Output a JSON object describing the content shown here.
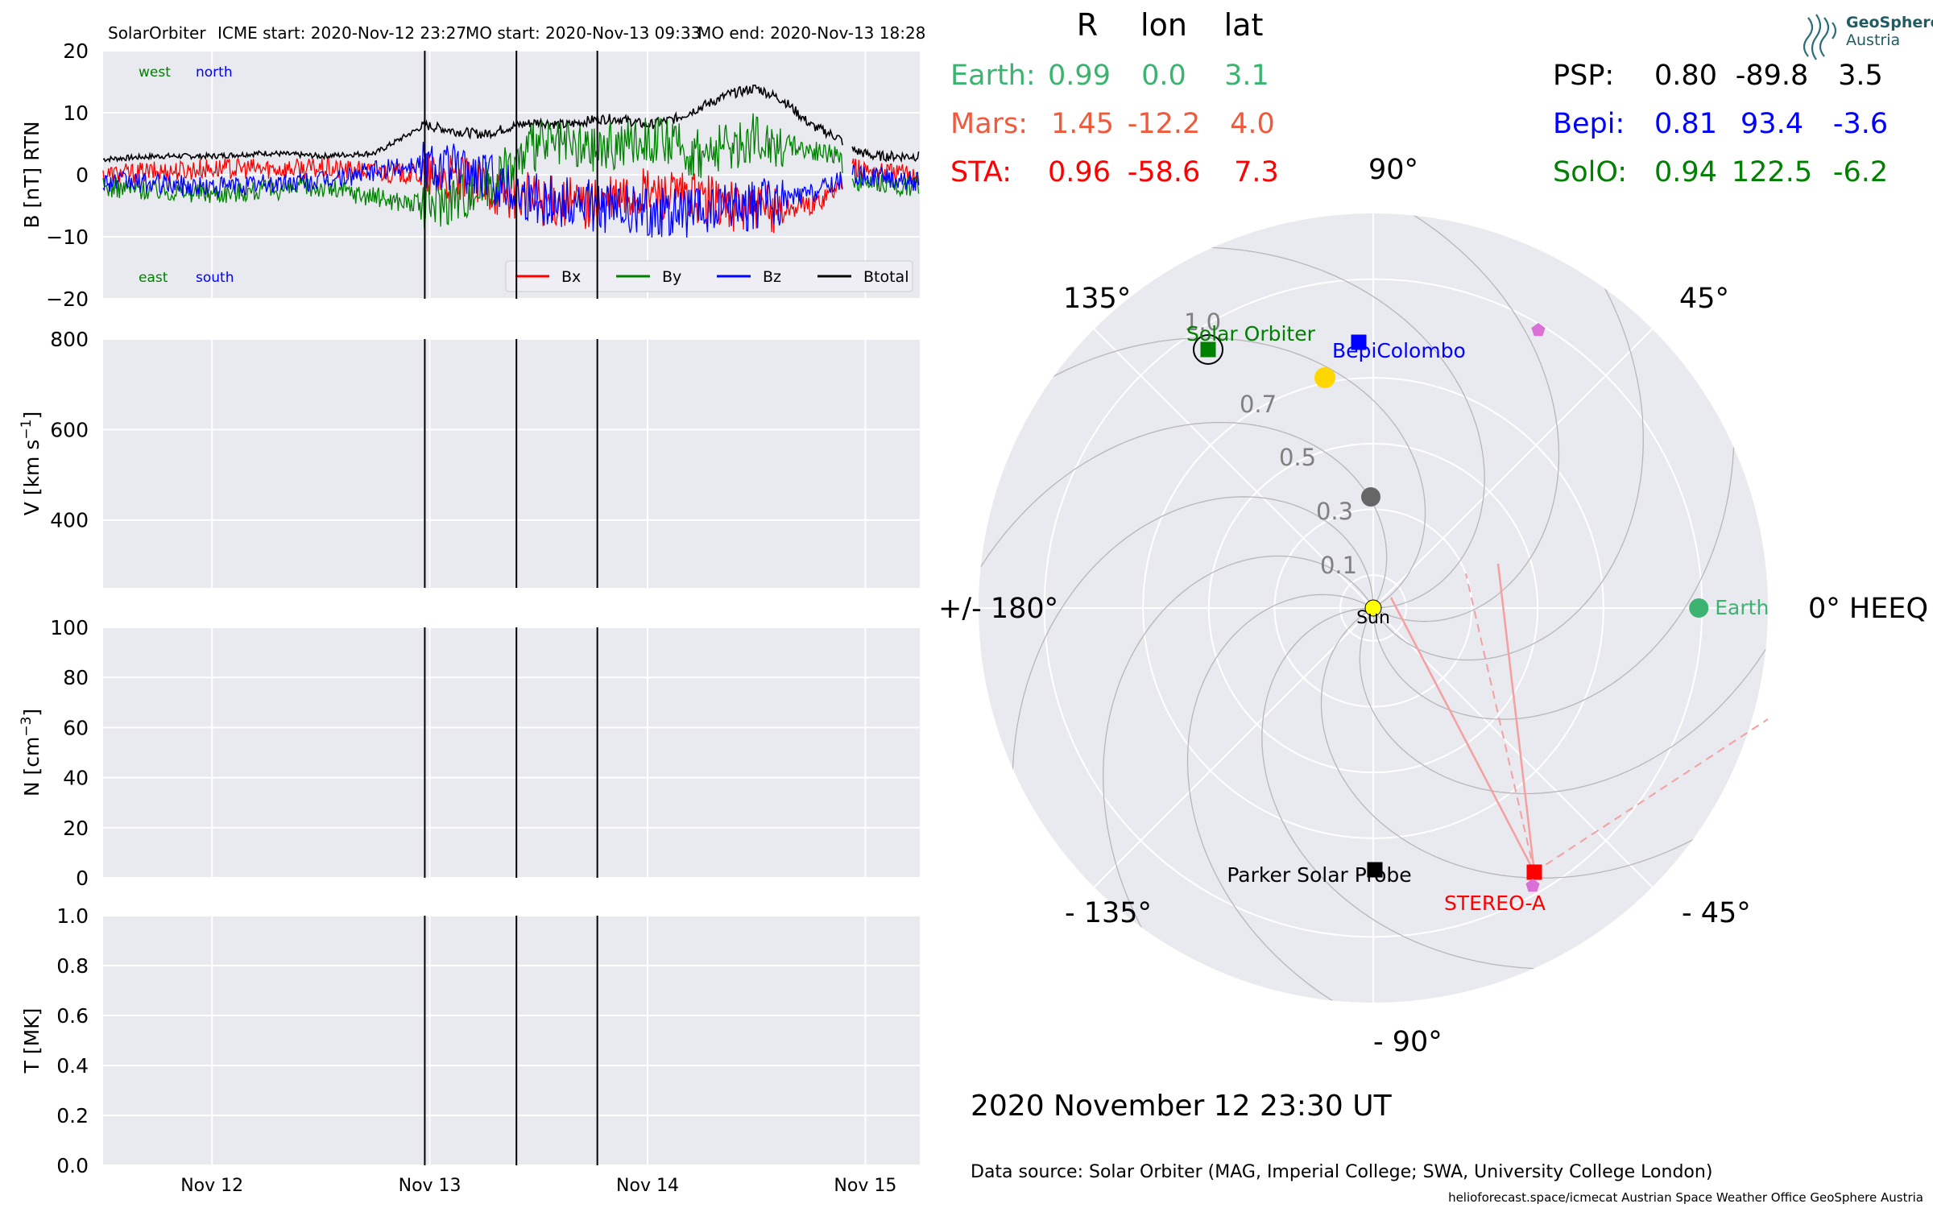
{
  "header": {
    "spacecraft": "SolarOrbiter",
    "icme_start": "ICME start: 2020-Nov-12 23:27",
    "mo_start": "MO start: 2020-Nov-13 09:33",
    "mo_end": "MO end: 2020-Nov-13 18:28"
  },
  "colors": {
    "panel_bg": "#e9e9f0",
    "Bx": "#ff0000",
    "By": "#008000",
    "Bz": "#0000ff",
    "Btotal": "#000000",
    "earth": "#3cb371",
    "mars": "#f05a3c",
    "sta": "#ff0000",
    "psp": "#000000",
    "bepi": "#0000ff",
    "solo": "#008000",
    "sun": "#ffff00",
    "mercury": "#666666",
    "venus": "#ffd700",
    "pink": "#da70d6"
  },
  "chart_data": [
    {
      "type": "line",
      "panel": "magnetic-field",
      "ylabel": "B [nT] RTN",
      "ylim": [
        -20,
        20
      ],
      "yticks": [
        "20",
        "10",
        "0",
        "−10",
        "−20"
      ],
      "xlim": [
        "2020-11-11 12:00",
        "2020-11-15 06:00"
      ],
      "xticks": [
        "Nov 12",
        "Nov 13",
        "Nov 14",
        "Nov 15"
      ],
      "annotations": {
        "top_left_1": "west",
        "top_left_2": "north",
        "bottom_left_1": "east",
        "bottom_left_2": "south"
      },
      "vlines": [
        "2020-11-12 23:27",
        "2020-11-13 09:33",
        "2020-11-13 18:28"
      ],
      "data_gap": [
        "2020-11-14 21:30",
        "2020-11-14 22:30"
      ],
      "legend": [
        "Bx",
        "By",
        "Bz",
        "Btotal"
      ],
      "series": [
        {
          "name": "Btotal",
          "x": [
            "11-11 12:00",
            "11-11 18:00",
            "11-12 00:00",
            "11-12 06:00",
            "11-12 12:00",
            "11-12 18:00",
            "11-12 23:27",
            "11-13 03:00",
            "11-13 06:00",
            "11-13 09:33",
            "11-13 12:00",
            "11-13 15:00",
            "11-13 18:28",
            "11-13 21:00",
            "11-14 00:00",
            "11-14 03:00",
            "11-14 06:00",
            "11-14 09:00",
            "11-14 12:00",
            "11-14 15:00",
            "11-14 18:00",
            "11-14 21:00",
            "11-14 22:30",
            "11-15 01:00",
            "11-15 06:00"
          ],
          "values": [
            2.5,
            3,
            3,
            3.5,
            3,
            3.5,
            8,
            7,
            6.5,
            8,
            8.5,
            8,
            9,
            9,
            8,
            9,
            11,
            13,
            14,
            12,
            8,
            6,
            4,
            3,
            3
          ]
        },
        {
          "name": "Bx",
          "x": [
            "11-11 12:00",
            "11-12 00:00",
            "11-12 12:00",
            "11-12 23:27",
            "11-13 06:00",
            "11-13 12:00",
            "11-13 18:00",
            "11-14 00:00",
            "11-14 06:00",
            "11-14 12:00",
            "11-14 18:00",
            "11-14 21:00",
            "11-14 22:30",
            "11-15 06:00"
          ],
          "values": [
            0,
            1,
            1,
            0,
            -2,
            -4,
            -5,
            -3,
            -4,
            -6,
            -5,
            -2,
            1,
            0
          ]
        },
        {
          "name": "By",
          "x": [
            "11-11 12:00",
            "11-12 00:00",
            "11-12 12:00",
            "11-12 23:27",
            "11-13 06:00",
            "11-13 12:00",
            "11-13 18:00",
            "11-14 00:00",
            "11-14 06:00",
            "11-14 12:00",
            "11-14 18:00",
            "11-14 21:00",
            "11-14 22:30",
            "11-15 06:00"
          ],
          "values": [
            -2,
            -3,
            -2,
            -5,
            -2,
            5,
            4,
            6,
            3,
            6,
            4,
            3,
            -1,
            -2
          ]
        },
        {
          "name": "Bz",
          "x": [
            "11-11 12:00",
            "11-12 00:00",
            "11-12 12:00",
            "11-12 23:27",
            "11-13 06:00",
            "11-13 12:00",
            "11-13 18:00",
            "11-14 00:00",
            "11-14 06:00",
            "11-14 12:00",
            "11-14 18:00",
            "11-14 21:00",
            "11-14 22:30",
            "11-15 06:00"
          ],
          "values": [
            -1,
            -2,
            -1,
            2,
            0,
            -4,
            -5,
            -6,
            -6,
            -5,
            -3,
            -1,
            0,
            -1
          ]
        }
      ]
    },
    {
      "type": "line",
      "panel": "velocity",
      "ylabel_main": "V [km s",
      "ylabel_sup": "−1",
      "ylabel_end": "]",
      "ylim": [
        250,
        800
      ],
      "yticks": [
        "800",
        "600",
        "400"
      ],
      "series": []
    },
    {
      "type": "line",
      "panel": "density",
      "ylabel_main": "N [cm",
      "ylabel_sup": "−3",
      "ylabel_end": "]",
      "ylim": [
        0,
        100
      ],
      "yticks": [
        "100",
        "80",
        "60",
        "40",
        "20",
        "0"
      ],
      "series": []
    },
    {
      "type": "line",
      "panel": "temperature",
      "ylabel": "T [MK]",
      "ylim": [
        0,
        1
      ],
      "yticks": [
        "1.0",
        "0.8",
        "0.6",
        "0.4",
        "0.2",
        "0.0"
      ],
      "series": []
    },
    {
      "type": "scatter",
      "panel": "polar-positions",
      "rlim": [
        0,
        1.2
      ],
      "r_ticks": [
        "0.1",
        "0.3",
        "0.5",
        "0.7",
        "1.0"
      ],
      "angle_labels": {
        "deg0": "0° HEEQ",
        "deg45": "45°",
        "deg90": "90°",
        "deg135": "135°",
        "deg180": "+/- 180°",
        "degm135": "- 135°",
        "degm90": "- 90°",
        "degm45": "- 45°"
      },
      "table_headers": [
        "R",
        "lon",
        "lat"
      ],
      "table_left": [
        {
          "name": "Earth:",
          "R": "0.99",
          "lon": "0.0",
          "lat": "3.1"
        },
        {
          "name": "Mars:",
          "R": "1.45",
          "lon": "-12.2",
          "lat": "4.0"
        },
        {
          "name": "STA:",
          "R": "0.96",
          "lon": "-58.6",
          "lat": "7.3"
        }
      ],
      "table_right": [
        {
          "name": "PSP:",
          "R": "0.80",
          "lon": "-89.8",
          "lat": "3.5"
        },
        {
          "name": "Bepi:",
          "R": "0.81",
          "lon": "93.4",
          "lat": "-3.6"
        },
        {
          "name": "SolO:",
          "R": "0.94",
          "lon": "122.5",
          "lat": "-6.2"
        }
      ],
      "bodies": [
        {
          "label": "Earth",
          "r": 0.99,
          "lon": 0.0,
          "marker": "circle"
        },
        {
          "label": "STEREO-A",
          "r": 0.96,
          "lon": -58.6,
          "marker": "square"
        },
        {
          "label": "Parker Solar Probe",
          "r": 0.8,
          "lon": -89.8,
          "marker": "square"
        },
        {
          "label": "BepiColombo",
          "r": 0.81,
          "lon": 93.4,
          "marker": "square"
        },
        {
          "label": "Solar Orbiter",
          "r": 0.94,
          "lon": 122.5,
          "marker": "square"
        },
        {
          "label": "Sun",
          "r": 0,
          "lon": 0,
          "marker": "circle"
        },
        {
          "label": "",
          "r": 0.33,
          "lon": 94,
          "marker": "circle"
        },
        {
          "label": "",
          "r": 0.72,
          "lon": 98,
          "marker": "circle"
        },
        {
          "label": "",
          "r": 1.0,
          "lon": 62,
          "marker": "pentagon"
        },
        {
          "label": "",
          "r": 0.95,
          "lon": -58,
          "marker": "pentagon"
        }
      ]
    }
  ],
  "footer": {
    "timestamp": "2020 November 12  23:30 UT",
    "data_source": "Data source: Solar Orbiter (MAG, Imperial College; SWA, University College London)",
    "credits": "helioforecast.space/icmecat   Austrian Space Weather Office   GeoSphere Austria"
  },
  "logo": {
    "line1": "GeoSphere",
    "line2": "Austria"
  }
}
